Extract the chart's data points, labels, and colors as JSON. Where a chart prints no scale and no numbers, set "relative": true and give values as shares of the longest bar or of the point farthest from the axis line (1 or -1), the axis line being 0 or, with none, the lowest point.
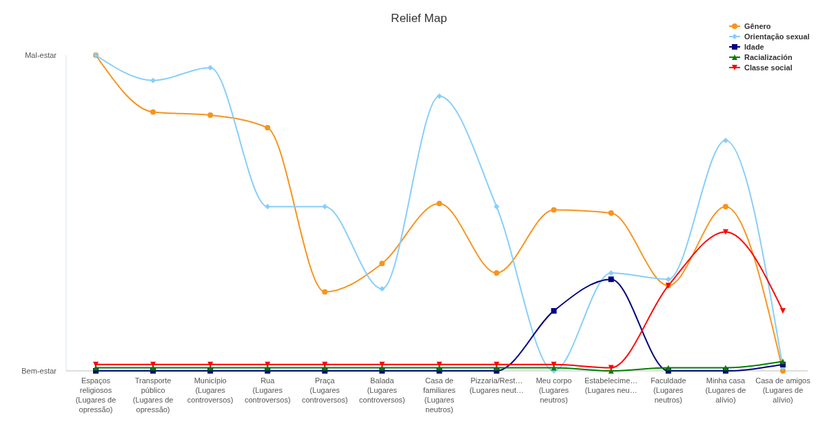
{
  "chart_data": {
    "type": "line",
    "title": "Relief Map",
    "categories": [
      "Espaços religiosos (Lugares de opressão)",
      "Transporte público (Lugares de opressão)",
      "Município (Lugares controversos)",
      "Rua (Lugares controversos)",
      "Praça (Lugares controversos)",
      "Balada (Lugares controversos)",
      "Casa de familiares (Lugares neutros)",
      "Pizzaria/Rest… (Lugares neut…",
      "Meu corpo (Lugares neutros)",
      "Estabelecime… (Lugares neu…",
      "Faculdade (Lugares neutros)",
      "Minha casa (Lugares de alívio)",
      "Casa de amigos (Lugares de alívio)"
    ],
    "relative": true,
    "annotations": [
      "Mal-estar",
      "Bem-estar"
    ],
    "legend": "top right",
    "series": [
      {
        "name": "Gênero",
        "color": "#f7941d",
        "marker": "circle",
        "values": [
          1.0,
          0.82,
          0.81,
          0.77,
          0.25,
          0.34,
          0.53,
          0.31,
          0.51,
          0.5,
          0.27,
          0.52,
          0
        ]
      },
      {
        "name": "Orientação sexual",
        "color": "#87cefa",
        "marker": "diamond",
        "values": [
          1.0,
          0.92,
          0.96,
          0.52,
          0.52,
          0.26,
          0.87,
          0.52,
          0,
          0.31,
          0.29,
          0.73,
          0.01
        ]
      },
      {
        "name": "Idade",
        "color": "#000080",
        "marker": "square",
        "values": [
          0,
          0,
          0,
          0,
          0,
          0,
          0,
          0,
          0.19,
          0.29,
          0,
          0,
          0.02
        ]
      },
      {
        "name": "Racialización",
        "color": "#008000",
        "marker": "triangle",
        "values": [
          0.01,
          0.01,
          0.01,
          0.01,
          0.01,
          0.01,
          0.01,
          0.01,
          0.01,
          0,
          0.01,
          0.01,
          0.03
        ]
      },
      {
        "name": "Classe social",
        "color": "#ff0000",
        "marker": "triangle-down",
        "values": [
          0.02,
          0.02,
          0.02,
          0.02,
          0.02,
          0.02,
          0.02,
          0.02,
          0.02,
          0.01,
          0.27,
          0.44,
          0.19
        ]
      }
    ]
  }
}
